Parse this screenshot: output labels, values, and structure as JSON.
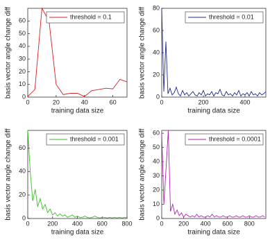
{
  "chart_data": [
    {
      "type": "line",
      "xlabel": "training data size",
      "ylabel": "basis vector angle change diff",
      "x": [
        0,
        5,
        10,
        15,
        20,
        25,
        30,
        35,
        40,
        45,
        50,
        55,
        60,
        65,
        70
      ],
      "series": [
        {
          "name": "threshold = 0.1",
          "color": "#d42020",
          "values": [
            0.5,
            6,
            70,
            60,
            10,
            2,
            3,
            3,
            0.5,
            5,
            6,
            7,
            6.5,
            14,
            12
          ]
        }
      ],
      "xlim": [
        0,
        70
      ],
      "xticks": [
        0,
        20,
        40,
        60
      ],
      "ylim": [
        0,
        70
      ],
      "yticks": [
        0,
        10,
        20,
        30,
        40,
        50,
        60
      ],
      "legend": "upper right"
    },
    {
      "type": "line",
      "xlabel": "training data size",
      "ylabel": "basis vector angle change diff",
      "x": [
        0,
        10,
        20,
        30,
        40,
        50,
        60,
        70,
        80,
        90,
        100,
        110,
        120,
        130,
        140,
        150,
        160,
        170,
        180,
        190,
        200,
        210,
        220,
        230,
        240,
        250,
        260,
        270,
        280,
        290,
        300,
        310,
        320,
        330,
        340,
        350,
        360,
        370,
        380,
        390,
        400,
        410,
        420,
        430,
        440,
        450,
        460,
        470,
        480,
        490,
        500
      ],
      "series": [
        {
          "name": "threshold =  0.01",
          "color": "#1c2a8e",
          "values": [
            80,
            5,
            50,
            3,
            8,
            2,
            4,
            9,
            3,
            1,
            6,
            2,
            4,
            1,
            3,
            5,
            2,
            1,
            4,
            2,
            6,
            1,
            3,
            2,
            5,
            1,
            4,
            3,
            7,
            2,
            1,
            5,
            2,
            3,
            1,
            4,
            2,
            6,
            1,
            3,
            2,
            4,
            1,
            5,
            2,
            3,
            1,
            4,
            2,
            3,
            5
          ]
        }
      ],
      "xlim": [
        0,
        500
      ],
      "xticks": [
        0,
        200,
        400
      ],
      "ylim": [
        0,
        80
      ],
      "yticks": [
        0,
        20,
        40,
        60,
        80
      ],
      "legend": "upper right"
    },
    {
      "type": "line",
      "xlabel": "training data size",
      "ylabel": "basis vector angle change diff",
      "x": [
        0,
        20,
        40,
        60,
        80,
        100,
        120,
        140,
        160,
        180,
        200,
        220,
        240,
        260,
        280,
        300,
        320,
        340,
        360,
        380,
        400,
        420,
        440,
        460,
        480,
        500,
        520,
        540,
        560,
        580,
        600,
        620,
        640,
        660,
        680,
        700,
        720,
        740,
        760,
        780,
        800
      ],
      "series": [
        {
          "name": "threshold = 0.001",
          "color": "#3cbb28",
          "values": [
            75,
            40,
            15,
            25,
            10,
            17,
            8,
            12,
            5,
            8,
            3,
            5,
            2,
            4,
            2,
            3,
            1,
            2,
            3,
            1,
            2,
            1,
            1,
            2,
            1,
            0.5,
            1,
            2,
            1,
            0.5,
            1,
            1,
            0.5,
            1,
            0.5,
            1,
            0.5,
            1,
            0.5,
            1,
            0.5
          ]
        }
      ],
      "xlim": [
        0,
        800
      ],
      "xticks": [
        0,
        200,
        400,
        600,
        800
      ],
      "ylim": [
        0,
        75
      ],
      "yticks": [
        0,
        20,
        40,
        60
      ],
      "legend": "upper right"
    },
    {
      "type": "line",
      "xlabel": "training data size",
      "ylabel": "basis vector angle change diff",
      "x": [
        0,
        20,
        40,
        60,
        80,
        100,
        120,
        140,
        160,
        180,
        200,
        220,
        240,
        260,
        280,
        300,
        320,
        340,
        360,
        380,
        400,
        420,
        440,
        460,
        480,
        500,
        520,
        540,
        560,
        580,
        600,
        620,
        640,
        660,
        680,
        700,
        720,
        740,
        760,
        780,
        800,
        820,
        840,
        860,
        880,
        900,
        920,
        940
      ],
      "series": [
        {
          "name": "threshold = 0.0001",
          "color": "#b022b0",
          "values": [
            60,
            10,
            36,
            62,
            5,
            10,
            3,
            6,
            2,
            4,
            1,
            3,
            2,
            1,
            2,
            1,
            3,
            1,
            2,
            1,
            1,
            2,
            1,
            3,
            1,
            2,
            1,
            1,
            2,
            1,
            1,
            2,
            1,
            1,
            2,
            1,
            1,
            2,
            1,
            1,
            2,
            1,
            1,
            2,
            1,
            1,
            2,
            1
          ]
        }
      ],
      "xlim": [
        0,
        950
      ],
      "xticks": [
        0,
        200,
        400,
        600,
        800
      ],
      "ylim": [
        0,
        62
      ],
      "yticks": [
        0,
        10,
        20,
        30,
        40,
        50,
        60
      ],
      "legend": "upper right"
    }
  ]
}
